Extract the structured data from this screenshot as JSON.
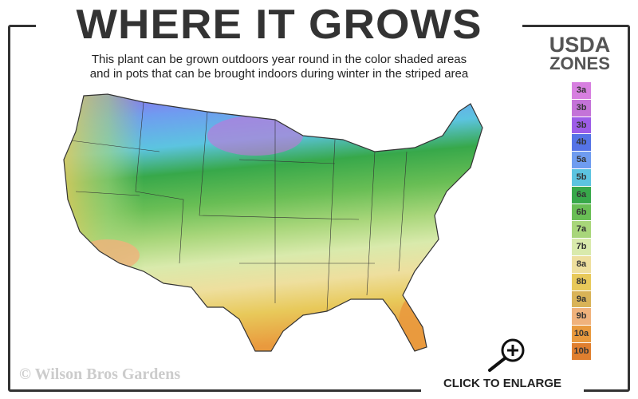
{
  "title": "WHERE IT GROWS",
  "subtitle_lines": [
    "This plant can be grown outdoors year round in the color shaded areas",
    "and in pots that can be brought indoors during winter in the striped area"
  ],
  "legend": {
    "title_line1": "USDA",
    "title_line2": "ZONES",
    "zones": [
      {
        "label": "3a",
        "color": "#d77fe0"
      },
      {
        "label": "3b",
        "color": "#c473d8"
      },
      {
        "label": "3b",
        "color": "#9d5ce8"
      },
      {
        "label": "4b",
        "color": "#5573e6"
      },
      {
        "label": "5a",
        "color": "#6f9cf0"
      },
      {
        "label": "5b",
        "color": "#5cc4e0"
      },
      {
        "label": "6a",
        "color": "#37a84a"
      },
      {
        "label": "6b",
        "color": "#69be55"
      },
      {
        "label": "7a",
        "color": "#a8d67a"
      },
      {
        "label": "7b",
        "color": "#d9eaac"
      },
      {
        "label": "8a",
        "color": "#eedf9e"
      },
      {
        "label": "8b",
        "color": "#e8c95a"
      },
      {
        "label": "9a",
        "color": "#d9b357"
      },
      {
        "label": "9b",
        "color": "#f0b27c"
      },
      {
        "label": "10a",
        "color": "#e99a3e"
      },
      {
        "label": "10b",
        "color": "#e07f2f"
      }
    ]
  },
  "watermark": "© Wilson Bros Gardens",
  "enlarge_label": "CLICK TO ENLARGE",
  "icons": {
    "enlarge": "magnifier-plus-icon"
  }
}
